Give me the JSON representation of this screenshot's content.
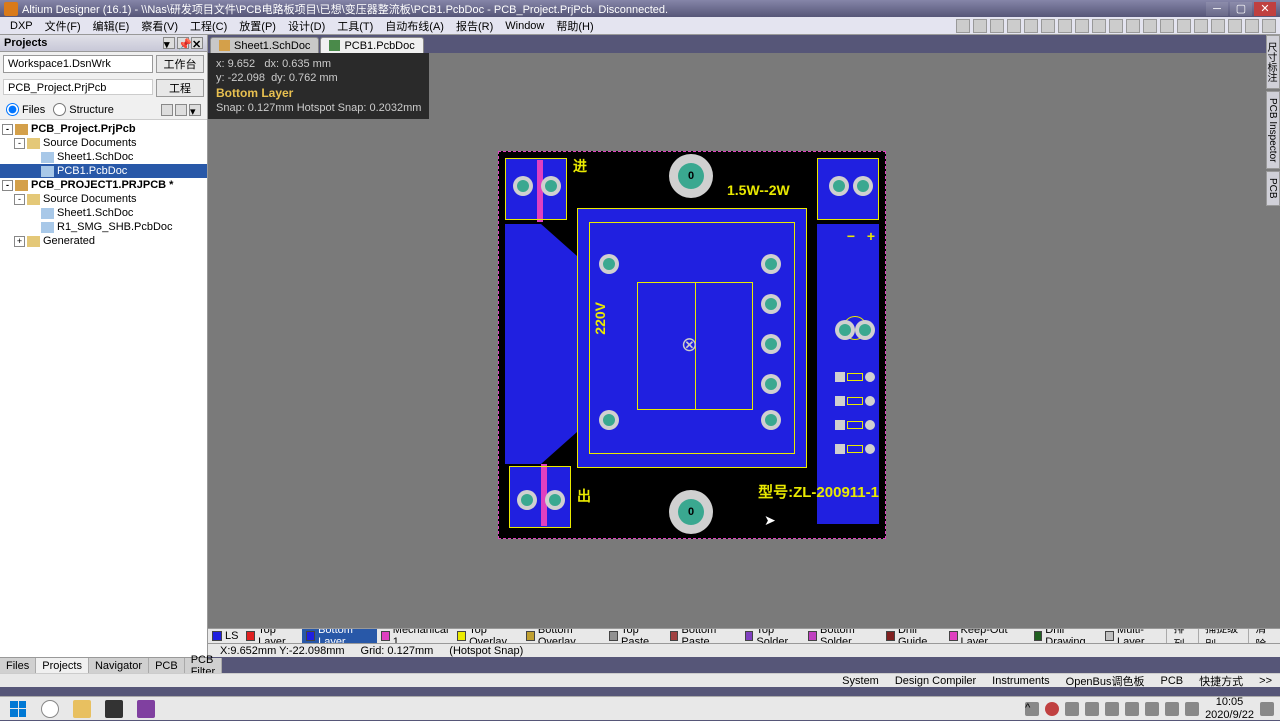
{
  "window": {
    "title": "Altium Designer (16.1) - \\\\Nas\\研发项目文件\\PCB电路板项目\\已想\\变压器整流板\\PCB1.PcbDoc - PCB_Project.PrjPcb. Disconnected."
  },
  "menu": [
    "DXP",
    "文件(F)",
    "编辑(E)",
    "察看(V)",
    "工程(C)",
    "放置(P)",
    "设计(D)",
    "工具(T)",
    "自动布线(A)",
    "报告(R)",
    "Window",
    "帮助(H)"
  ],
  "panel_title": "Projects",
  "workspace": {
    "value": "Workspace1.DsnWrk",
    "btn": "工作台"
  },
  "project_name": {
    "value": "PCB_Project.PrjPcb",
    "btn": "工程"
  },
  "view_mode": {
    "files": "Files",
    "structure": "Structure"
  },
  "tree": [
    {
      "d": 0,
      "exp": "-",
      "icon": "prj",
      "label": "PCB_Project.PrjPcb",
      "bold": true
    },
    {
      "d": 1,
      "exp": "-",
      "icon": "fold",
      "label": "Source Documents"
    },
    {
      "d": 2,
      "exp": "",
      "icon": "doc",
      "label": "Sheet1.SchDoc"
    },
    {
      "d": 2,
      "exp": "",
      "icon": "doc",
      "label": "PCB1.PcbDoc",
      "sel": true
    },
    {
      "d": 0,
      "exp": "-",
      "icon": "prj",
      "label": "PCB_PROJECT1.PRJPCB *",
      "bold": true
    },
    {
      "d": 1,
      "exp": "-",
      "icon": "fold",
      "label": "Source Documents"
    },
    {
      "d": 2,
      "exp": "",
      "icon": "doc",
      "label": "Sheet1.SchDoc"
    },
    {
      "d": 2,
      "exp": "",
      "icon": "doc",
      "label": "R1_SMG_SHB.PcbDoc"
    },
    {
      "d": 1,
      "exp": "+",
      "icon": "fold",
      "label": "Generated"
    }
  ],
  "left_tabs": [
    "Files",
    "Projects",
    "Navigator",
    "PCB",
    "PCB Filter"
  ],
  "left_tabs_active": 1,
  "doc_tabs": [
    {
      "label": "Sheet1.SchDoc",
      "active": false
    },
    {
      "label": "PCB1.PcbDoc",
      "active": true
    }
  ],
  "coords": {
    "x_label": "x:",
    "x": "9.652",
    "dx_label": "dx:",
    "dx": "0.635 mm",
    "y_label": "y:",
    "y": "-22.098",
    "dy_label": "dy:",
    "dy": "0.762 mm",
    "layer": "Bottom Layer",
    "snap": "Snap: 0.127mm  Hotspot Snap: 0.2032mm"
  },
  "board": {
    "text_in": "进",
    "text_out": "出",
    "wattage": "1.5W--2W",
    "voltage": "220V",
    "model": "型号:ZL-200911-1",
    "pad_num": "0",
    "plus": "+",
    "minus": "−"
  },
  "right_tabs": [
    "尺寸标注",
    "PCB Inspector",
    "PCB"
  ],
  "layers": [
    {
      "name": "LS",
      "color": "#2020e0",
      "pre": true
    },
    {
      "name": "Top Layer",
      "color": "#e02020"
    },
    {
      "name": "Bottom Layer",
      "color": "#2020e0",
      "active": true
    },
    {
      "name": "Mechanical 1",
      "color": "#e040c0"
    },
    {
      "name": "Top Overlay",
      "color": "#eaea00"
    },
    {
      "name": "Bottom Overlay",
      "color": "#c0a030"
    },
    {
      "name": "Top Paste",
      "color": "#909090"
    },
    {
      "name": "Bottom Paste",
      "color": "#a04040"
    },
    {
      "name": "Top Solder",
      "color": "#8040c0"
    },
    {
      "name": "Bottom Solder",
      "color": "#c040c0"
    },
    {
      "name": "Drill Guide",
      "color": "#802020"
    },
    {
      "name": "Keep-Out Layer",
      "color": "#e040c0"
    },
    {
      "name": "Drill Drawing",
      "color": "#206020"
    },
    {
      "name": "Multi-Layer",
      "color": "#c0c0c0"
    }
  ],
  "layer_btns": [
    "排列",
    "捕捉级别",
    "清除"
  ],
  "info": {
    "pos": "X:9.652mm Y:-22.098mm",
    "grid": "Grid: 0.127mm",
    "snap": "(Hotspot Snap)"
  },
  "status_tabs": [
    "System",
    "Design Compiler",
    "Instruments",
    "OpenBus调色板",
    "PCB",
    "快捷方式"
  ],
  "clock": {
    "time": "10:05",
    "date": "2020/9/22"
  }
}
